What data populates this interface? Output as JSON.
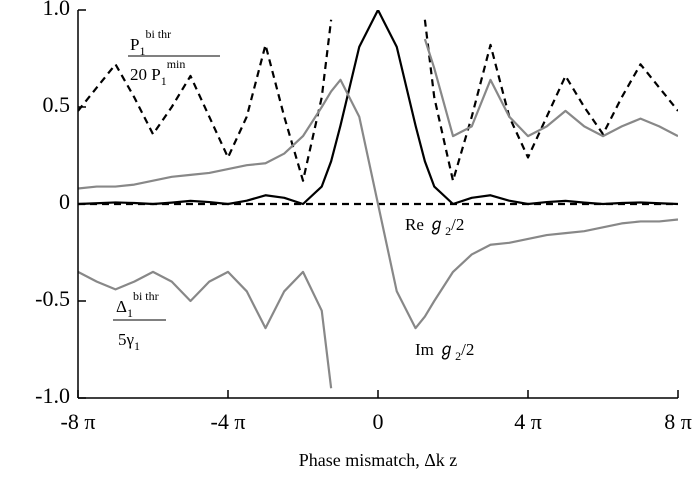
{
  "chart_data": {
    "type": "line",
    "x_label": "Phase mismatch, Δk z",
    "xlim": [
      -8,
      8
    ],
    "ylim": [
      -1,
      1
    ],
    "xticks": [
      {
        "value": -8,
        "label": "-8 π"
      },
      {
        "value": -4,
        "label": "-4 π"
      },
      0,
      {
        "value": 4,
        "label": "4 π"
      },
      {
        "value": 8,
        "label": "8 π"
      }
    ],
    "yticks": [
      {
        "value": -1,
        "label": "-1.0"
      },
      -0.5,
      0,
      0.5,
      {
        "value": 1,
        "label": "1.0"
      }
    ],
    "x": [
      -8,
      -7.5,
      -7,
      -6.5,
      -6,
      -5.5,
      -5,
      -4.5,
      -4,
      -3.5,
      -3,
      -2.5,
      -2,
      -1.5,
      -1.25,
      -1,
      -0.5,
      0,
      0.5,
      1,
      1.25,
      1.5,
      2,
      2.5,
      3,
      3.5,
      4,
      4.5,
      5,
      5.5,
      6,
      6.5,
      7,
      7.5,
      8
    ],
    "series": [
      {
        "color": "#000000",
        "dashed": false,
        "values": [
          0,
          0.004,
          0.008,
          0.005,
          0,
          0.007,
          0.016,
          0.01,
          0,
          0.017,
          0.045,
          0.032,
          0,
          0.09,
          0.22,
          0.405,
          0.81,
          1,
          0.81,
          0.405,
          0.22,
          0.09,
          0,
          0.032,
          0.045,
          0.017,
          0,
          0.01,
          0.016,
          0.007,
          0,
          0.005,
          0.008,
          0.004,
          0
        ]
      },
      {
        "color": "#000000",
        "dashed": true,
        "values": [
          0.48,
          0.6,
          0.72,
          0.55,
          0.36,
          0.5,
          0.66,
          0.45,
          0.24,
          0.45,
          0.82,
          0.45,
          0.12,
          0.55,
          0.95,
          null,
          null,
          null,
          null,
          null,
          0.95,
          0.55,
          0.12,
          0.45,
          0.82,
          0.45,
          0.24,
          0.45,
          0.66,
          0.5,
          0.36,
          0.55,
          0.72,
          0.6,
          0.48
        ]
      },
      {
        "color": "#000000",
        "dashed": true,
        "values": [
          0,
          0,
          0,
          0,
          0,
          0,
          0,
          0,
          0,
          0,
          0,
          0,
          0,
          0,
          0,
          0,
          0,
          0,
          0,
          0,
          0,
          0,
          0,
          0,
          0,
          0,
          0,
          0,
          0,
          0,
          0,
          0,
          0,
          0,
          0
        ]
      },
      {
        "color": "#888888",
        "dashed": false,
        "values": [
          0.08,
          0.09,
          0.09,
          0.1,
          0.12,
          0.14,
          0.15,
          0.16,
          0.18,
          0.2,
          0.21,
          0.26,
          0.35,
          0.5,
          0.58,
          0.64,
          0.45,
          0,
          -0.45,
          -0.64,
          -0.58,
          -0.5,
          -0.35,
          -0.26,
          -0.21,
          -0.2,
          -0.18,
          -0.16,
          -0.15,
          -0.14,
          -0.12,
          -0.1,
          -0.09,
          -0.09,
          -0.08
        ]
      },
      {
        "color": "#888888",
        "dashed": false,
        "values": [
          -0.35,
          -0.4,
          -0.44,
          -0.4,
          -0.35,
          -0.4,
          -0.5,
          -0.4,
          -0.35,
          -0.45,
          -0.64,
          -0.45,
          -0.35,
          -0.55,
          -0.95,
          null,
          null,
          null,
          null,
          null,
          0.85,
          0.7,
          0.35,
          0.4,
          0.64,
          0.45,
          0.35,
          0.4,
          0.48,
          0.4,
          0.35,
          0.4,
          0.44,
          0.4,
          0.35
        ]
      }
    ],
    "annotations": {
      "p_numerator": [
        "P",
        "1",
        "bi thr"
      ],
      "p_denominator": [
        "20 P",
        "1",
        "min"
      ],
      "re_label": [
        "Re ℊ",
        "2",
        "/2"
      ],
      "im_label": [
        "Im ℊ",
        "2",
        "/2"
      ],
      "delta_numerator": [
        "Δ",
        "1",
        "bi thr"
      ],
      "delta_denominator": [
        "5γ",
        "1"
      ]
    }
  }
}
